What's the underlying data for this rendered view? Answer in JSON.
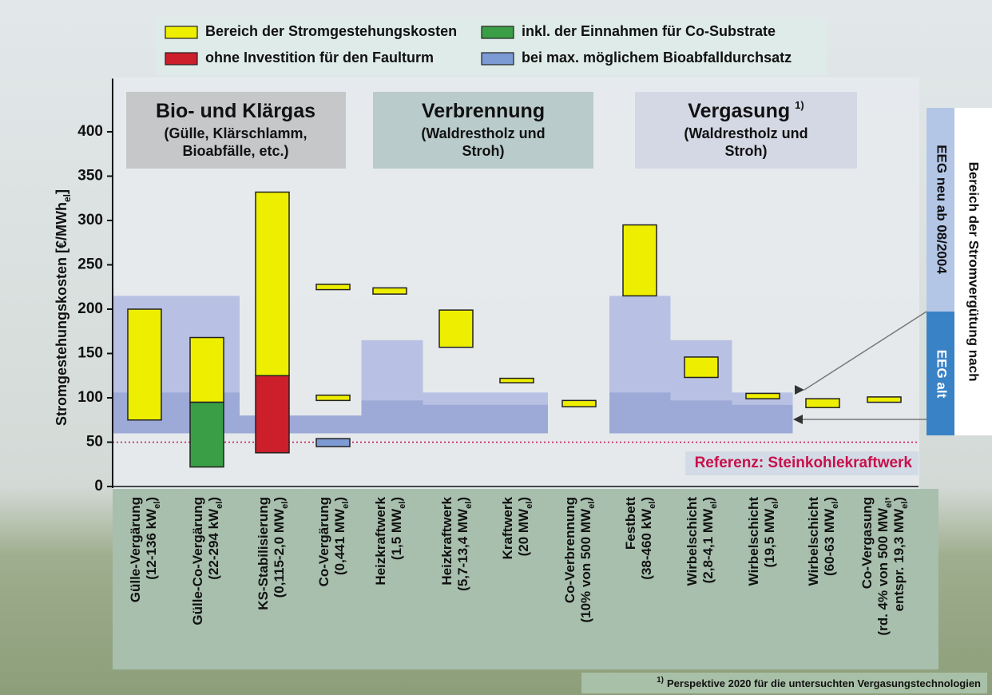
{
  "chart_data": {
    "type": "range-bar",
    "ylabel": {
      "text": "Stromgestehungskosten [€/MWh",
      "sub": "el",
      "tail": "]"
    },
    "ylim": [
      0,
      460
    ],
    "yticks": [
      0,
      50,
      100,
      150,
      200,
      250,
      300,
      350,
      400
    ],
    "categories": [
      [
        {
          "text": "Gülle-Vergärung"
        },
        {
          "text": "(12-136 kW",
          "sub": "el",
          "tail": ")"
        }
      ],
      [
        {
          "text": "Gülle-Co-Vergärung"
        },
        {
          "text": "(22-294 kW",
          "sub": "el",
          "tail": ")"
        }
      ],
      [
        {
          "text": "KS-Stabilisierung"
        },
        {
          "text": "(0,115-2,0 MW",
          "sub": "el",
          "tail": ")"
        }
      ],
      [
        {
          "text": "Co-Vergärung"
        },
        {
          "text": "(0,441 MW",
          "sub": "el",
          "tail": ")"
        }
      ],
      [
        {
          "text": "Heizkraftwerk"
        },
        {
          "text": "(1,5 MW",
          "sub": "el",
          "tail": ")"
        }
      ],
      [
        {
          "text": "Heizkraftwerk"
        },
        {
          "text": "(5,7-13,4 MW",
          "sub": "el",
          "tail": ")"
        }
      ],
      [
        {
          "text": "Kraftwerk"
        },
        {
          "text": "(20 MW",
          "sub": "el",
          "tail": ")"
        }
      ],
      [
        {
          "text": "Co-Verbrennung"
        },
        {
          "text": "(10% von 500 MW",
          "sub": "el",
          "tail": ")"
        }
      ],
      [
        {
          "text": "Festbett"
        },
        {
          "text": "(38-460 kW",
          "sub": "el",
          "tail": ")"
        }
      ],
      [
        {
          "text": "Wirbelschicht"
        },
        {
          "text": "(2,8-4,1 MW",
          "sub": "el",
          "tail": ")"
        }
      ],
      [
        {
          "text": "Wirbelschicht"
        },
        {
          "text": "(19,5 MW",
          "sub": "el",
          "tail": ")"
        }
      ],
      [
        {
          "text": "Wirbelschicht"
        },
        {
          "text": "(60-63 MW",
          "sub": "el",
          "tail": ")"
        }
      ],
      [
        {
          "text": "Co-Vergasung"
        },
        {
          "text": "(rd. 4% von 500 MW",
          "sub": "el",
          "tail": ","
        },
        {
          "text": "entspr. 19,3 MW",
          "sub": "el",
          "tail": ")"
        }
      ]
    ],
    "series": [
      {
        "name": "Bereich der Stromgestehungskosten",
        "color": "#eeee00",
        "values": [
          [
            [
              75,
              200
            ]
          ],
          [
            [
              95,
              168
            ]
          ],
          [
            [
              125,
              332
            ]
          ],
          [
            [
              97,
              103
            ],
            [
              222,
              228
            ]
          ],
          [
            [
              217,
              224
            ]
          ],
          [
            [
              157,
              199
            ]
          ],
          [
            [
              117,
              122
            ]
          ],
          [
            [
              90,
              97
            ]
          ],
          [
            [
              215,
              295
            ]
          ],
          [
            [
              123,
              146
            ]
          ],
          [
            [
              99,
              105
            ]
          ],
          [
            [
              89,
              99
            ]
          ],
          [
            [
              95,
              101
            ]
          ]
        ]
      },
      {
        "name": "inkl. der Einnahmen für Co-Substrate",
        "color": "#3a9e46",
        "values": [
          null,
          [
            [
              22,
              95
            ]
          ],
          null,
          null,
          null,
          null,
          null,
          null,
          null,
          null,
          null,
          null,
          null
        ]
      },
      {
        "name": "ohne Investition für den Faulturm",
        "color": "#cc1f2b",
        "values": [
          null,
          null,
          [
            [
              38,
              125
            ]
          ],
          null,
          null,
          null,
          null,
          null,
          null,
          null,
          null,
          null,
          null
        ]
      },
      {
        "name": "bei max. möglichem Bioabfalldurchsatz",
        "color": "#7c9ad4",
        "values": [
          null,
          null,
          null,
          [
            [
              45,
              54
            ]
          ],
          null,
          null,
          null,
          null,
          null,
          null,
          null,
          null,
          null
        ]
      }
    ],
    "groups": [
      {
        "title": "Bio- und Klärgas",
        "subtitle": [
          "(Gülle, Klärschlamm,",
          "Bioabfälle, etc.)"
        ]
      },
      {
        "title": "Verbrennung",
        "subtitle": [
          "(Waldrestholz und",
          "Stroh)"
        ]
      },
      {
        "title": "Vergasung",
        "note": "1)",
        "subtitle": [
          "(Waldrestholz und",
          "Stroh)"
        ]
      }
    ],
    "eeg": {
      "title": "Bereich der Stromvergütung nach",
      "base": 60,
      "neu": {
        "name": "EEG neu ab 08/2004",
        "color": "#b3bde2",
        "values": [
          215,
          215,
          80,
          80,
          165,
          106,
          106,
          null,
          215,
          165,
          106,
          null,
          null
        ]
      },
      "alt": {
        "name": "EEG alt",
        "color": "#9aa6d4",
        "values": [
          106,
          106,
          80,
          80,
          97,
          92,
          92,
          null,
          106,
          97,
          92,
          null,
          null
        ]
      }
    },
    "reference": {
      "label": "Referenz: Steinkohlekraftwerk",
      "value": 50,
      "color": "#c8104a"
    },
    "footnote": {
      "mark": "1)",
      "text": "Perspektive 2020 für die untersuchten Vergasungstechnologien"
    }
  }
}
